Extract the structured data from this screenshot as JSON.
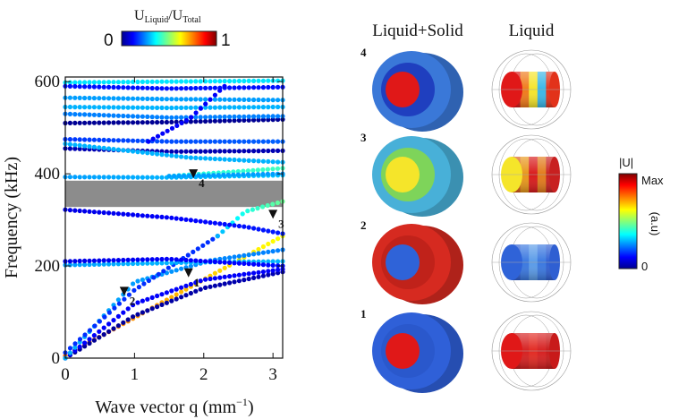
{
  "chart_data": {
    "type": "scatter",
    "xlabel": "Wave vector q (mm",
    "xlabel_sup": "−1",
    "xlabel_close": ")",
    "ylabel": "Frequency (kHz)",
    "xlim": [
      0,
      3.14
    ],
    "ylim": [
      0,
      610
    ],
    "x_ticks": [
      0,
      1,
      2,
      3
    ],
    "y_ticks": [
      0,
      200,
      400,
      600
    ],
    "x_tick_labels": [
      "0",
      "1",
      "2",
      "3"
    ],
    "y_tick_labels": [
      "0",
      "200",
      "400",
      "600"
    ],
    "band_gap": {
      "from": 328,
      "to": 385,
      "color": "#8c8c8c"
    },
    "color_metric": "U_Liquid / U_Total (0–1)",
    "branches": [
      {
        "x": [
          0,
          3.14
        ],
        "y": [
          5,
          265
        ],
        "c": [
          0.78,
          0.62
        ]
      },
      {
        "x": [
          0,
          1.0,
          2.0,
          3.14
        ],
        "y": [
          0,
          92,
          152,
          187
        ],
        "c": [
          0.02,
          0.03,
          0.04,
          0.05
        ]
      },
      {
        "x": [
          0,
          1.0,
          2.0,
          3.14
        ],
        "y": [
          0,
          118,
          170,
          193
        ],
        "c": [
          0.12,
          0.12,
          0.12,
          0.12
        ]
      },
      {
        "x": [
          0,
          1.0,
          2.1,
          3.14
        ],
        "y": [
          0,
          165,
          212,
          235
        ],
        "c": [
          0.3,
          0.28,
          0.26,
          0.25
        ]
      },
      {
        "x": [
          0,
          1.0,
          2.2
        ],
        "y": [
          12,
          148,
          265
        ],
        "c": [
          0.17,
          0.17,
          0.17
        ]
      },
      {
        "x": [
          2.2,
          2.6,
          3.14
        ],
        "y": [
          265,
          318,
          340
        ],
        "c": [
          0.3,
          0.4,
          0.48
        ]
      },
      {
        "x": [
          0,
          1.0,
          2.0,
          3.14
        ],
        "y": [
          202,
          205,
          208,
          210
        ],
        "c": [
          0.28,
          0.3,
          0.3,
          0.3
        ]
      },
      {
        "x": [
          0,
          1.5,
          3.14
        ],
        "y": [
          210,
          215,
          200
        ],
        "c": [
          0.1,
          0.12,
          0.13
        ]
      },
      {
        "x": [
          0,
          1.5,
          2.6,
          3.14
        ],
        "y": [
          322,
          305,
          285,
          270
        ],
        "c": [
          0.1,
          0.12,
          0.14,
          0.15
        ]
      },
      {
        "x": [
          0,
          1.5,
          3.14
        ],
        "y": [
          393,
          392,
          397
        ],
        "c": [
          0.28,
          0.3,
          0.32
        ]
      },
      {
        "x": [
          1.5,
          2.5,
          3.14
        ],
        "y": [
          395,
          405,
          412
        ],
        "c": [
          0.4,
          0.42,
          0.44
        ]
      },
      {
        "x": [
          0,
          1.5,
          3.14
        ],
        "y": [
          455,
          448,
          450
        ],
        "c": [
          0.05,
          0.05,
          0.05
        ]
      },
      {
        "x": [
          0,
          1.8,
          3.14
        ],
        "y": [
          465,
          435,
          425
        ],
        "c": [
          0.3,
          0.3,
          0.3
        ]
      },
      {
        "x": [
          0,
          1.5,
          3.14
        ],
        "y": [
          475,
          470,
          470
        ],
        "c": [
          0.18,
          0.2,
          0.22
        ]
      },
      {
        "x": [
          0,
          1.5,
          3.14
        ],
        "y": [
          510,
          512,
          518
        ],
        "c": [
          0.02,
          0.02,
          0.02
        ]
      },
      {
        "x": [
          0,
          1.5,
          3.14
        ],
        "y": [
          530,
          522,
          525
        ],
        "c": [
          0.25,
          0.25,
          0.25
        ]
      },
      {
        "x": [
          0,
          1.5,
          3.14
        ],
        "y": [
          545,
          543,
          545
        ],
        "c": [
          0.3,
          0.3,
          0.3
        ]
      },
      {
        "x": [
          0,
          1.5,
          3.14
        ],
        "y": [
          565,
          562,
          560
        ],
        "c": [
          0.28,
          0.28,
          0.28
        ]
      },
      {
        "x": [
          0,
          1.5,
          3.14
        ],
        "y": [
          598,
          600,
          602
        ],
        "c": [
          0.35,
          0.35,
          0.35
        ]
      },
      {
        "x": [
          0,
          1.5,
          3.14
        ],
        "y": [
          590,
          585,
          588
        ],
        "c": [
          0.14,
          0.14,
          0.14
        ]
      },
      {
        "x": [
          1.2,
          1.8,
          2.3
        ],
        "y": [
          470,
          520,
          590
        ],
        "c": [
          0.12,
          0.12,
          0.12
        ]
      },
      {
        "x": [
          1.5,
          3.14
        ],
        "y": [
          395,
          400
        ],
        "c": [
          0.28,
          0.28
        ]
      }
    ],
    "markers": [
      {
        "label": "1",
        "x": 1.78,
        "y": 183
      },
      {
        "label": "2",
        "x": 0.85,
        "y": 143
      },
      {
        "label": "3",
        "x": 3.0,
        "y": 310
      },
      {
        "label": "4",
        "x": 1.85,
        "y": 398
      }
    ]
  },
  "colorbar_top": {
    "title_main": "U",
    "title_sub1": "Liquid",
    "slash": "/U",
    "title_sub2": "Total",
    "min_label": "0",
    "max_label": "1"
  },
  "colorbar_right": {
    "title": "|U|",
    "max_label": "Max",
    "min_label": "0",
    "unit": "(a.u)"
  },
  "panels": {
    "col_left": "Liquid+Solid",
    "col_right": "Liquid",
    "rows": [
      {
        "label": "4",
        "outer": "#3a78d8",
        "mid": "#1f3fbf",
        "core": "#e01818",
        "ring_band": [
          "#d81a1a",
          "#f07a1a",
          "#f5e52a",
          "#3ab7e8",
          "#e2321a"
        ]
      },
      {
        "label": "3",
        "outer": "#48b0d8",
        "mid": "#7ed45a",
        "core": "#f5e52a",
        "ring_band": [
          "#d85a1a",
          "#e8961a",
          "#d81a1a",
          "#e27a1a",
          "#c82020"
        ]
      },
      {
        "label": "2",
        "outer": "#d62a20",
        "mid": "#c0221a",
        "core": "#2f63d8",
        "ring_band": [
          "#2f5fd2",
          "#3a78e0",
          "#5a9be8",
          "#3a78e0",
          "#2f5fd2"
        ]
      },
      {
        "label": "1",
        "outer": "#2f60d8",
        "mid": "#2a58cc",
        "core": "#e01818",
        "ring_band": [
          "#c81a1a",
          "#d62020",
          "#e22a22",
          "#d62020",
          "#c81a1a"
        ]
      }
    ]
  }
}
